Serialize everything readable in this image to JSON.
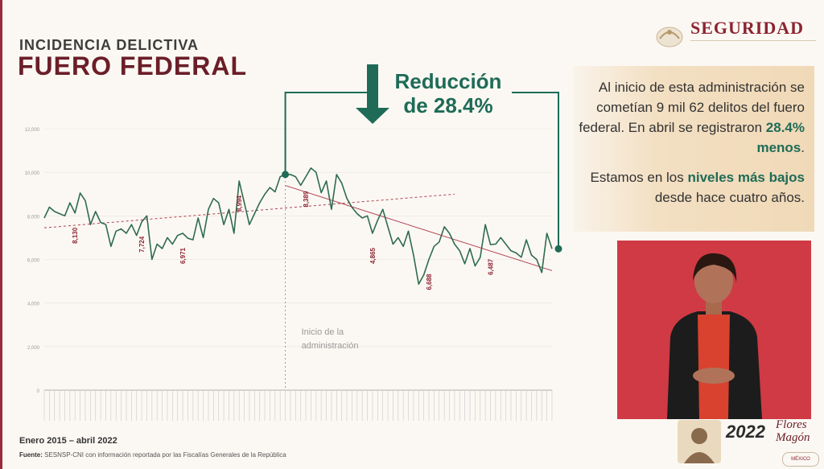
{
  "header": {
    "subtitle": "INCIDENCIA DELICTIVA",
    "title": "FUERO FEDERAL"
  },
  "brand": {
    "name": "SEGURIDAD",
    "color": "#8c2332"
  },
  "callout": {
    "line1": "Reducción",
    "line2": "de 28.4%",
    "color": "#1f6b57"
  },
  "info": {
    "p1_a": "Al inicio de esta administración se cometían 9 mil 62 delitos del fuero federal. En abril se registraron ",
    "p1_b": "28.4% menos",
    "p1_c": ".",
    "p2_a": "Estamos en los ",
    "p2_b": "niveles más bajos",
    "p2_c": " desde hace cuatro años."
  },
  "footer": {
    "range": "Enero 2015 – abril 2022",
    "source_label": "Fuente:",
    "source_text": "SESNSP-CNI con información reportada por las Fiscalías Generales de la República"
  },
  "footer_logo": {
    "year": "2022",
    "flores_line1": "Flores",
    "flores_line2": "Magón",
    "mexico": "MÉXICO"
  },
  "chart_data": {
    "type": "line",
    "x_start": "2015-01",
    "x_end": "2022-04",
    "ylim": [
      0,
      12000
    ],
    "yticks": [
      0,
      2000,
      4000,
      6000,
      8000,
      10000,
      12000
    ],
    "grid": true,
    "colors": {
      "line": "#2f6b4f",
      "trend": "#b04050",
      "highlight_label": "#8c2332",
      "marker": "#1f6b57"
    },
    "annotation": {
      "text_line1": "Inicio de la",
      "text_line2": "administración",
      "at": "2018-12"
    },
    "highlighted_labels": [
      {
        "date": "2015-07",
        "label": "8,130"
      },
      {
        "date": "2016-08",
        "label": "7,724"
      },
      {
        "date": "2017-04",
        "label": "6,971"
      },
      {
        "date": "2018-03",
        "label": "8,994"
      },
      {
        "date": "2019-04",
        "label": "8,389"
      },
      {
        "date": "2020-05",
        "label": "4,865"
      },
      {
        "date": "2021-04",
        "label": "6,688"
      },
      {
        "date": "2022-04",
        "label": "6,487"
      }
    ],
    "series": [
      {
        "values": [
          7900,
          8400,
          8200,
          8100,
          8000,
          8600,
          8130,
          9050,
          8700,
          7600,
          8200,
          7700,
          7600,
          6600,
          7300,
          7400,
          7200,
          7600,
          7100,
          7724,
          8000,
          6000,
          6700,
          6500,
          7000,
          6700,
          7100,
          7200,
          6971,
          6900,
          7900,
          7000,
          8300,
          8800,
          8600,
          7600,
          8300,
          7200,
          9600,
          8600,
          7600,
          8100,
          8600,
          8994,
          9300,
          9100,
          9800,
          9900,
          9900,
          9800,
          9400,
          9800,
          10200,
          10000,
          9062,
          9600,
          8300,
          9900,
          9500,
          8800,
          8389,
          8100,
          7900,
          8000,
          7200,
          7800,
          8300,
          7500,
          6700,
          7000,
          6600,
          7300,
          6200,
          4865,
          5300,
          6000,
          6600,
          6800,
          7500,
          7200,
          6700,
          6400,
          5800,
          6500,
          5700,
          6100,
          7600,
          6688,
          6700,
          7000,
          6700,
          6400,
          6300,
          6100,
          6900,
          6200,
          6000,
          5400,
          7200,
          6487
        ]
      }
    ]
  }
}
